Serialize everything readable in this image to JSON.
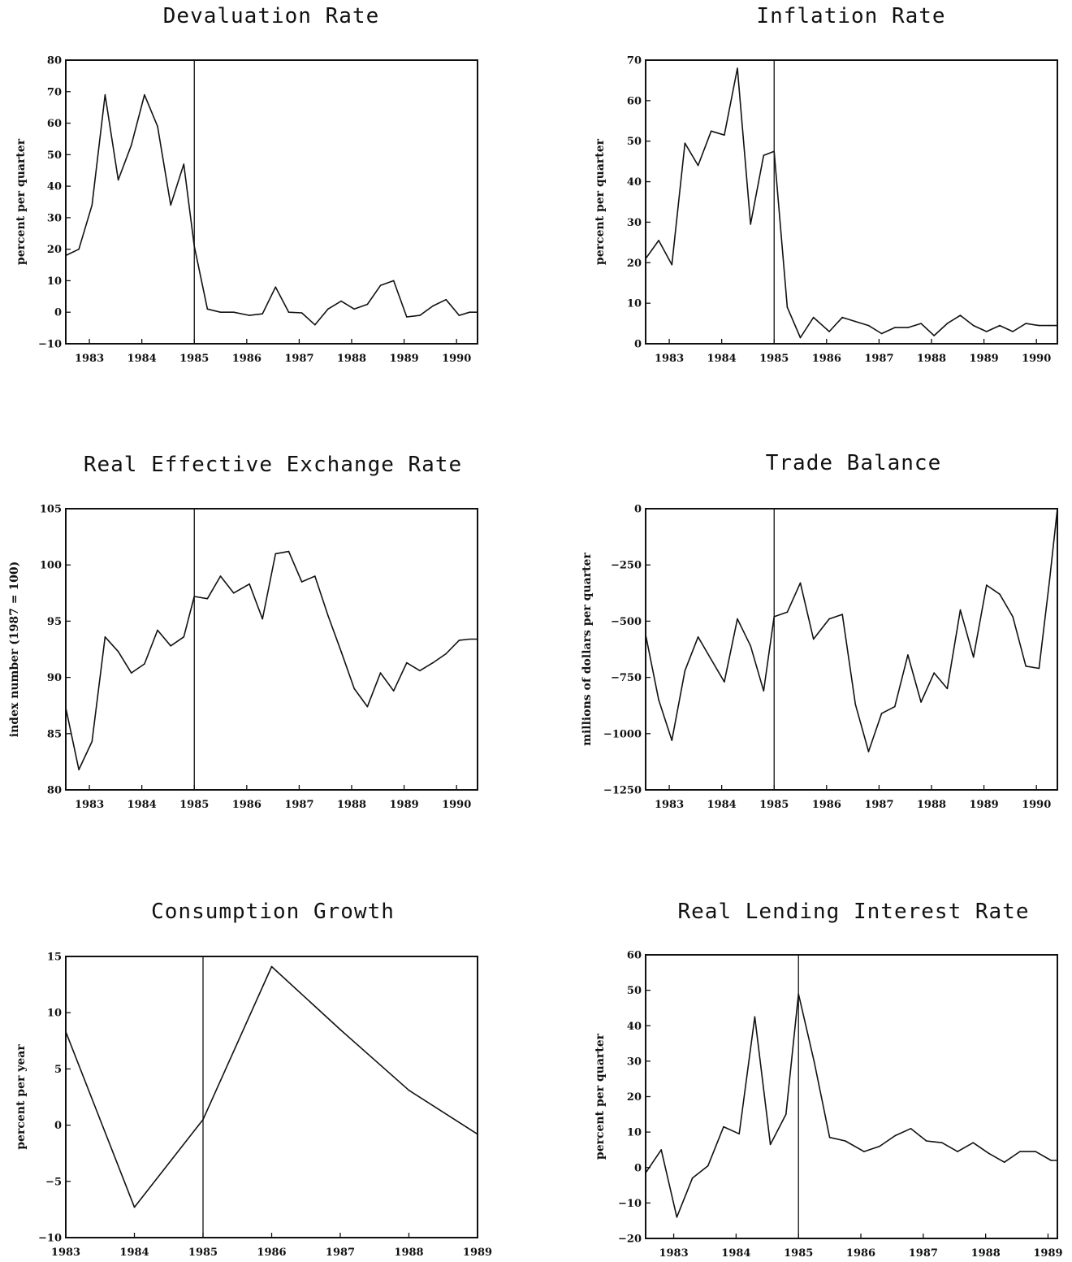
{
  "chart_data": [
    {
      "type": "line",
      "title": "Devaluation Rate",
      "ylabel": "percent per quarter",
      "xlabel": "",
      "ylim": [
        -10,
        80
      ],
      "yticks": [
        -10,
        0,
        10,
        20,
        30,
        40,
        50,
        60,
        70,
        80
      ],
      "xlim": [
        1982.55,
        1990.4
      ],
      "xticks": [
        1983,
        1984,
        1985,
        1986,
        1987,
        1988,
        1989,
        1990
      ],
      "vline": 1985.0,
      "series": [
        {
          "x": [
            1982.55,
            1982.8,
            1983.05,
            1983.3,
            1983.55,
            1983.8,
            1984.05,
            1984.3,
            1984.55,
            1984.8,
            1985.0,
            1985.25,
            1985.5,
            1985.75,
            1986.05,
            1986.3,
            1986.55,
            1986.8,
            1987.05,
            1987.3,
            1987.55,
            1987.8,
            1988.05,
            1988.3,
            1988.55,
            1988.8,
            1989.05,
            1989.3,
            1989.55,
            1989.8,
            1990.05,
            1990.25,
            1990.4
          ],
          "y": [
            18,
            20,
            34,
            69,
            42,
            53,
            69,
            59,
            34,
            47,
            21,
            1,
            0,
            0,
            -1,
            -0.5,
            8,
            0,
            -0.2,
            -4,
            1,
            3.5,
            1,
            2.5,
            8.5,
            10,
            -1.5,
            -1,
            2,
            4,
            -1,
            0,
            0
          ]
        }
      ]
    },
    {
      "type": "line",
      "title": "Inflation Rate",
      "ylabel": "percent per quarter",
      "xlabel": "",
      "ylim": [
        0,
        70
      ],
      "yticks": [
        0,
        10,
        20,
        30,
        40,
        50,
        60,
        70
      ],
      "xlim": [
        1982.55,
        1990.4
      ],
      "xticks": [
        1983,
        1984,
        1985,
        1986,
        1987,
        1988,
        1989,
        1990
      ],
      "vline": 1985.0,
      "series": [
        {
          "x": [
            1982.55,
            1982.8,
            1983.05,
            1983.3,
            1983.55,
            1983.8,
            1984.05,
            1984.3,
            1984.55,
            1984.8,
            1985.0,
            1985.25,
            1985.5,
            1985.75,
            1986.05,
            1986.3,
            1986.55,
            1986.8,
            1987.05,
            1987.3,
            1987.55,
            1987.8,
            1988.05,
            1988.3,
            1988.55,
            1988.8,
            1989.05,
            1989.3,
            1989.55,
            1989.8,
            1990.05,
            1990.25,
            1990.4
          ],
          "y": [
            21,
            25.5,
            19.5,
            49.5,
            44,
            52.5,
            51.5,
            68,
            29.5,
            46.5,
            47.5,
            9,
            1.5,
            6.5,
            3,
            6.5,
            5.5,
            4.5,
            2.5,
            4,
            4,
            5,
            2,
            5,
            7,
            4.5,
            3,
            4.5,
            3,
            5,
            4.5,
            4.5,
            4.5
          ]
        }
      ]
    },
    {
      "type": "line",
      "title": "Real Effective Exchange Rate",
      "ylabel": "index number (1987 = 100)",
      "xlabel": "",
      "ylim": [
        80,
        105
      ],
      "yticks": [
        80,
        85,
        90,
        95,
        100,
        105
      ],
      "xlim": [
        1982.55,
        1990.4
      ],
      "xticks": [
        1983,
        1984,
        1985,
        1986,
        1987,
        1988,
        1989,
        1990
      ],
      "vline": 1985.0,
      "series": [
        {
          "x": [
            1982.55,
            1982.8,
            1983.05,
            1983.3,
            1983.55,
            1983.8,
            1984.05,
            1984.3,
            1984.55,
            1984.8,
            1985.0,
            1985.25,
            1985.5,
            1985.75,
            1986.05,
            1986.3,
            1986.55,
            1986.8,
            1987.05,
            1987.3,
            1987.55,
            1987.8,
            1988.05,
            1988.3,
            1988.55,
            1988.8,
            1989.05,
            1989.3,
            1989.55,
            1989.8,
            1990.05,
            1990.25,
            1990.4
          ],
          "y": [
            87.3,
            81.8,
            84.3,
            93.6,
            92.3,
            90.4,
            91.2,
            94.2,
            92.8,
            93.6,
            97.2,
            97,
            99,
            97.5,
            98.3,
            95.2,
            101,
            101.2,
            98.5,
            99,
            95.5,
            92.3,
            89,
            87.4,
            90.4,
            88.8,
            91.3,
            90.6,
            91.3,
            92.1,
            93.3,
            93.4,
            93.4
          ]
        }
      ]
    },
    {
      "type": "line",
      "title": "Trade Balance",
      "ylabel": "millions of dollars per quarter",
      "xlabel": "",
      "ylim": [
        -1250,
        0
      ],
      "yticks": [
        -1250,
        -1000,
        -750,
        -500,
        -250,
        0
      ],
      "xlim": [
        1982.55,
        1990.4
      ],
      "xticks": [
        1983,
        1984,
        1985,
        1986,
        1987,
        1988,
        1989,
        1990
      ],
      "vline": 1985.0,
      "series": [
        {
          "x": [
            1982.55,
            1982.8,
            1983.05,
            1983.3,
            1983.55,
            1983.8,
            1984.05,
            1984.3,
            1984.55,
            1984.8,
            1985.0,
            1985.25,
            1985.5,
            1985.75,
            1986.05,
            1986.3,
            1986.55,
            1986.8,
            1987.05,
            1987.3,
            1987.55,
            1987.8,
            1988.05,
            1988.3,
            1988.55,
            1988.8,
            1989.05,
            1989.3,
            1989.55,
            1989.8,
            1990.05,
            1990.25,
            1990.4
          ],
          "y": [
            -560,
            -850,
            -1030,
            -720,
            -570,
            -670,
            -770,
            -490,
            -610,
            -810,
            -480,
            -460,
            -330,
            -580,
            -490,
            -470,
            -870,
            -1080,
            -910,
            -880,
            -650,
            -860,
            -730,
            -800,
            -450,
            -660,
            -340,
            -380,
            -480,
            -700,
            -710,
            -320,
            0
          ]
        }
      ]
    },
    {
      "type": "line",
      "title": "Consumption Growth",
      "ylabel": "percent per year",
      "xlabel": "",
      "ylim": [
        -10,
        15
      ],
      "yticks": [
        -10,
        -5,
        0,
        5,
        10,
        15
      ],
      "xlim": [
        1983,
        1989
      ],
      "xticks": [
        1983,
        1984,
        1985,
        1986,
        1987,
        1988,
        1989
      ],
      "vline": 1985.0,
      "series": [
        {
          "x": [
            1983,
            1984,
            1985,
            1986,
            1987,
            1988,
            1989
          ],
          "y": [
            8.3,
            -7.3,
            0.5,
            14.1,
            8.5,
            3.1,
            -0.8
          ]
        }
      ]
    },
    {
      "type": "line",
      "title": "Real Lending Interest Rate",
      "ylabel": "percent per quarter",
      "xlabel": "",
      "ylim": [
        -20,
        60
      ],
      "yticks": [
        -20,
        -10,
        0,
        10,
        20,
        30,
        40,
        50,
        60
      ],
      "xlim": [
        1982.55,
        1989.15
      ],
      "xticks": [
        1983,
        1984,
        1985,
        1986,
        1987,
        1988,
        1989
      ],
      "vline": 1985.0,
      "series": [
        {
          "x": [
            1982.55,
            1982.8,
            1983.05,
            1983.3,
            1983.55,
            1983.8,
            1984.05,
            1984.3,
            1984.55,
            1984.8,
            1985.0,
            1985.25,
            1985.5,
            1985.75,
            1986.05,
            1986.3,
            1986.55,
            1986.8,
            1987.05,
            1987.3,
            1987.55,
            1987.8,
            1988.05,
            1988.3,
            1988.55,
            1988.8,
            1989.05,
            1989.15
          ],
          "y": [
            -1.5,
            5,
            -14,
            -3,
            0.5,
            11.5,
            9.5,
            42.5,
            6.5,
            15,
            49,
            30,
            8.5,
            7.5,
            4.5,
            6,
            9,
            11,
            7.5,
            7,
            4.5,
            7,
            4,
            1.5,
            4.5,
            4.5,
            2,
            2
          ]
        }
      ]
    }
  ]
}
